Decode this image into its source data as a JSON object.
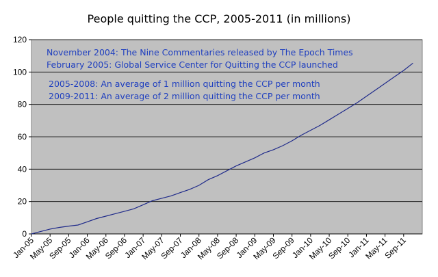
{
  "chart_data": {
    "type": "line",
    "title": "People quitting the CCP, 2005-2011 (in millions)",
    "xlabel": "",
    "ylabel": "",
    "ylim": [
      0,
      120
    ],
    "yticks": [
      0,
      20,
      40,
      60,
      80,
      100,
      120
    ],
    "grid": true,
    "legend": "none",
    "xlim": [
      "2005-01",
      "2011-12"
    ],
    "xticks": [
      "Jan-05",
      "May-05",
      "Sep-05",
      "Jan-06",
      "May-06",
      "Sep-06",
      "Jan-07",
      "May-07",
      "Sep-07",
      "Jan-08",
      "May-08",
      "Sep-08",
      "Jan-09",
      "May-09",
      "Sep-09",
      "Jan-10",
      "May-10",
      "Sep-10",
      "Jan-11",
      "May-11",
      "Sep-11"
    ],
    "colors": {
      "plot_background": "#c0c0c0",
      "line": "#1f2a8a",
      "annotation": "#1f3fbf"
    },
    "series": [
      {
        "x": [
          "2005-01",
          "2005-03",
          "2005-05",
          "2005-07",
          "2005-09",
          "2005-11",
          "2006-01",
          "2006-03",
          "2006-05",
          "2006-07",
          "2006-09",
          "2006-11",
          "2007-01",
          "2007-03",
          "2007-05",
          "2007-07",
          "2007-09",
          "2007-11",
          "2008-01",
          "2008-03",
          "2008-05",
          "2008-07",
          "2008-09",
          "2008-11",
          "2009-01",
          "2009-03",
          "2009-05",
          "2009-07",
          "2009-09",
          "2009-11",
          "2010-01",
          "2010-03",
          "2010-05",
          "2010-07",
          "2010-09",
          "2010-11",
          "2011-01",
          "2011-03",
          "2011-05",
          "2011-07",
          "2011-09",
          "2011-11"
        ],
        "values": [
          0,
          1.5,
          3,
          4,
          4.8,
          5.5,
          7.5,
          9.5,
          11,
          12.5,
          14,
          15.5,
          18,
          20.5,
          22,
          23.5,
          25.5,
          27.5,
          30,
          33.5,
          36,
          39,
          42,
          44.5,
          47,
          50,
          52,
          54.5,
          57.5,
          61,
          64,
          67,
          70.5,
          74,
          77.5,
          81,
          85,
          89,
          93,
          97,
          101,
          105.5
        ]
      }
    ],
    "annotations": [
      "November 2004: The Nine Commentaries released by The Epoch Times",
      "February 2005: Global Service Center for Quitting the CCP launched",
      "2005-2008: An average of 1 million quitting the CCP per month",
      "2009-2011: An average of 2 million quitting the CCP per month"
    ]
  }
}
